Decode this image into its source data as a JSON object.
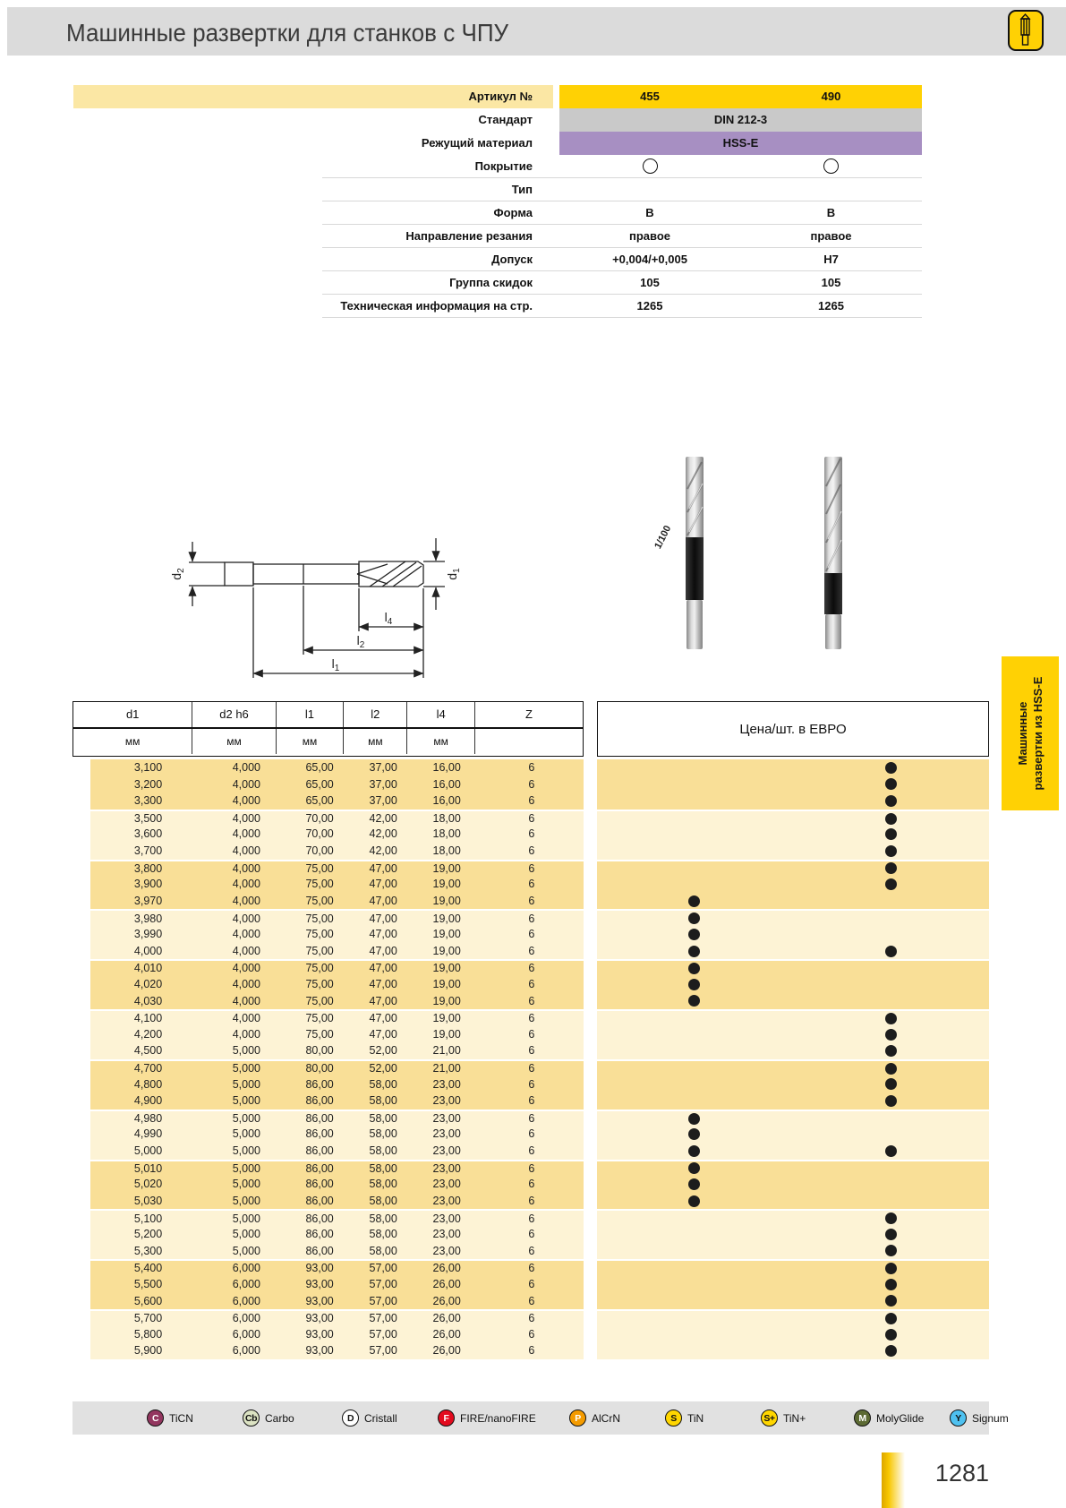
{
  "page": {
    "title": "Машинные развертки для станков с ЧПУ",
    "page_number": "1281",
    "sidebar_tab": {
      "line1": "Машинные",
      "line2": "развертки из HSS-E"
    },
    "colors": {
      "accent_gold": "#FFD104",
      "band_gray": "#C9C9C9",
      "band_purple": "#A78FC2",
      "row_dark": "#F9DF97",
      "row_light": "#FDF3D5",
      "header_bar": "#DBDBDB",
      "legend_bar": "#E1E1E1"
    }
  },
  "spec_table": {
    "rows": [
      {
        "label": "Артикул №",
        "values": [
          "455",
          "490"
        ],
        "band": "gold",
        "span": false,
        "circles": false
      },
      {
        "label": "Стандарт",
        "values": [
          "DIN 212-3"
        ],
        "band": "gray",
        "span": true,
        "circles": false
      },
      {
        "label": "Режущий материал",
        "values": [
          "HSS-E"
        ],
        "band": "purple",
        "span": true,
        "circles": false
      },
      {
        "label": "Покрытие",
        "values": [
          "",
          ""
        ],
        "band": "none",
        "span": false,
        "circles": true
      },
      {
        "label": "Тип",
        "values": [
          "",
          ""
        ],
        "band": "none",
        "span": false,
        "circles": false
      },
      {
        "label": "Форма",
        "values": [
          "B",
          "B"
        ],
        "band": "none",
        "span": false,
        "circles": false
      },
      {
        "label": "Направление резания",
        "values": [
          "правое",
          "правое"
        ],
        "band": "none",
        "span": false,
        "circles": false
      },
      {
        "label": "Допуск",
        "values": [
          "+0,004/+0,005",
          "H7"
        ],
        "band": "none",
        "span": false,
        "circles": false
      },
      {
        "label": "Группа скидок",
        "values": [
          "105",
          "105"
        ],
        "band": "none",
        "span": false,
        "circles": false
      },
      {
        "label": "Техническая информация на стр.",
        "values": [
          "1265",
          "1265"
        ],
        "band": "none",
        "span": false,
        "circles": false
      }
    ]
  },
  "drawing": {
    "labels": [
      {
        "base": "d",
        "sub": "2"
      },
      {
        "base": "d",
        "sub": "1"
      },
      {
        "base": "l",
        "sub": "4"
      },
      {
        "base": "l",
        "sub": "2"
      },
      {
        "base": "l",
        "sub": "1"
      }
    ]
  },
  "photos": {
    "scale_label": "1/100"
  },
  "dim_table": {
    "col_headers": [
      "d1",
      "d2 h6",
      "l1",
      "l2",
      "l4",
      "Z"
    ],
    "unit_row": [
      "мм",
      "мм",
      "мм",
      "мм",
      "мм",
      ""
    ],
    "price_header": "Цена/шт. в ЕВРО",
    "rows": [
      [
        "3,100",
        "4,000",
        "65,00",
        "37,00",
        "16,00",
        "6",
        "right"
      ],
      [
        "3,200",
        "4,000",
        "65,00",
        "37,00",
        "16,00",
        "6",
        "right"
      ],
      [
        "3,300",
        "4,000",
        "65,00",
        "37,00",
        "16,00",
        "6",
        "right"
      ],
      [
        "3,500",
        "4,000",
        "70,00",
        "42,00",
        "18,00",
        "6",
        "right"
      ],
      [
        "3,600",
        "4,000",
        "70,00",
        "42,00",
        "18,00",
        "6",
        "right"
      ],
      [
        "3,700",
        "4,000",
        "70,00",
        "42,00",
        "18,00",
        "6",
        "right"
      ],
      [
        "3,800",
        "4,000",
        "75,00",
        "47,00",
        "19,00",
        "6",
        "right"
      ],
      [
        "3,900",
        "4,000",
        "75,00",
        "47,00",
        "19,00",
        "6",
        "right"
      ],
      [
        "3,970",
        "4,000",
        "75,00",
        "47,00",
        "19,00",
        "6",
        "left"
      ],
      [
        "3,980",
        "4,000",
        "75,00",
        "47,00",
        "19,00",
        "6",
        "left"
      ],
      [
        "3,990",
        "4,000",
        "75,00",
        "47,00",
        "19,00",
        "6",
        "left"
      ],
      [
        "4,000",
        "4,000",
        "75,00",
        "47,00",
        "19,00",
        "6",
        "both"
      ],
      [
        "4,010",
        "4,000",
        "75,00",
        "47,00",
        "19,00",
        "6",
        "left"
      ],
      [
        "4,020",
        "4,000",
        "75,00",
        "47,00",
        "19,00",
        "6",
        "left"
      ],
      [
        "4,030",
        "4,000",
        "75,00",
        "47,00",
        "19,00",
        "6",
        "left"
      ],
      [
        "4,100",
        "4,000",
        "75,00",
        "47,00",
        "19,00",
        "6",
        "right"
      ],
      [
        "4,200",
        "4,000",
        "75,00",
        "47,00",
        "19,00",
        "6",
        "right"
      ],
      [
        "4,500",
        "5,000",
        "80,00",
        "52,00",
        "21,00",
        "6",
        "right"
      ],
      [
        "4,700",
        "5,000",
        "80,00",
        "52,00",
        "21,00",
        "6",
        "right"
      ],
      [
        "4,800",
        "5,000",
        "86,00",
        "58,00",
        "23,00",
        "6",
        "right"
      ],
      [
        "4,900",
        "5,000",
        "86,00",
        "58,00",
        "23,00",
        "6",
        "right"
      ],
      [
        "4,980",
        "5,000",
        "86,00",
        "58,00",
        "23,00",
        "6",
        "left"
      ],
      [
        "4,990",
        "5,000",
        "86,00",
        "58,00",
        "23,00",
        "6",
        "left"
      ],
      [
        "5,000",
        "5,000",
        "86,00",
        "58,00",
        "23,00",
        "6",
        "both"
      ],
      [
        "5,010",
        "5,000",
        "86,00",
        "58,00",
        "23,00",
        "6",
        "left"
      ],
      [
        "5,020",
        "5,000",
        "86,00",
        "58,00",
        "23,00",
        "6",
        "left"
      ],
      [
        "5,030",
        "5,000",
        "86,00",
        "58,00",
        "23,00",
        "6",
        "left"
      ],
      [
        "5,100",
        "5,000",
        "86,00",
        "58,00",
        "23,00",
        "6",
        "right"
      ],
      [
        "5,200",
        "5,000",
        "86,00",
        "58,00",
        "23,00",
        "6",
        "right"
      ],
      [
        "5,300",
        "5,000",
        "86,00",
        "58,00",
        "23,00",
        "6",
        "right"
      ],
      [
        "5,400",
        "6,000",
        "93,00",
        "57,00",
        "26,00",
        "6",
        "right"
      ],
      [
        "5,500",
        "6,000",
        "93,00",
        "57,00",
        "26,00",
        "6",
        "right"
      ],
      [
        "5,600",
        "6,000",
        "93,00",
        "57,00",
        "26,00",
        "6",
        "right"
      ],
      [
        "5,700",
        "6,000",
        "93,00",
        "57,00",
        "26,00",
        "6",
        "right"
      ],
      [
        "5,800",
        "6,000",
        "93,00",
        "57,00",
        "26,00",
        "6",
        "right"
      ],
      [
        "5,900",
        "6,000",
        "93,00",
        "57,00",
        "26,00",
        "6",
        "right"
      ]
    ]
  },
  "legend": {
    "items": [
      {
        "code": "C",
        "label": "TiCN",
        "bg": "#93365F",
        "fg": "#FFFFFF"
      },
      {
        "code": "Cb",
        "label": "Carbo",
        "bg": "#DCE3C3",
        "fg": "#111111"
      },
      {
        "code": "D",
        "label": "Cristall",
        "bg": "#FFFFFF",
        "fg": "#111111"
      },
      {
        "code": "F",
        "label": "FIRE/nanoFIRE",
        "bg": "#E30B1E",
        "fg": "#FFFFFF"
      },
      {
        "code": "P",
        "label": "AlCrN",
        "bg": "#F49B00",
        "fg": "#FFFFFF"
      },
      {
        "code": "S",
        "label": "TiN",
        "bg": "#FFD600",
        "fg": "#111111"
      },
      {
        "code": "S+",
        "label": "TiN+",
        "bg": "#FFD600",
        "fg": "#111111"
      },
      {
        "code": "M",
        "label": "MolyGlide",
        "bg": "#5C6A33",
        "fg": "#FFFFFF"
      },
      {
        "code": "Y",
        "label": "Signum",
        "bg": "#4EC1F0",
        "fg": "#111111"
      }
    ]
  }
}
